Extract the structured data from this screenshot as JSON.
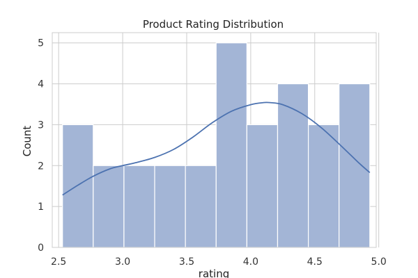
{
  "chart_data": {
    "type": "bar",
    "title": "Product Rating Distribution",
    "xlabel": "rating",
    "ylabel": "Count",
    "xlim": [
      2.45,
      4.98
    ],
    "ylim": [
      0,
      5.25
    ],
    "x_ticks": [
      2.5,
      3.0,
      3.5,
      4.0,
      4.5,
      5.0
    ],
    "x_tick_labels": [
      "2.5",
      "3.0",
      "3.5",
      "4.0",
      "4.5",
      "5.0"
    ],
    "y_ticks": [
      0,
      1,
      2,
      3,
      4,
      5
    ],
    "y_tick_labels": [
      "0",
      "1",
      "2",
      "3",
      "4",
      "5"
    ],
    "grid": true,
    "bins": [
      {
        "x0": 2.53,
        "x1": 2.77,
        "count": 3
      },
      {
        "x0": 2.77,
        "x1": 3.01,
        "count": 2
      },
      {
        "x0": 3.01,
        "x1": 3.25,
        "count": 2
      },
      {
        "x0": 3.25,
        "x1": 3.49,
        "count": 2
      },
      {
        "x0": 3.49,
        "x1": 3.73,
        "count": 2
      },
      {
        "x0": 3.73,
        "x1": 3.97,
        "count": 5
      },
      {
        "x0": 3.97,
        "x1": 4.21,
        "count": 3
      },
      {
        "x0": 4.21,
        "x1": 4.45,
        "count": 4
      },
      {
        "x0": 4.45,
        "x1": 4.69,
        "count": 3
      },
      {
        "x0": 4.69,
        "x1": 4.93,
        "count": 4
      }
    ],
    "kde_curve": {
      "x": [
        2.53,
        2.65,
        2.77,
        2.9,
        3.0,
        3.1,
        3.25,
        3.4,
        3.55,
        3.7,
        3.85,
        4.0,
        4.1,
        4.15,
        4.25,
        4.4,
        4.55,
        4.7,
        4.85,
        4.93
      ],
      "y": [
        1.28,
        1.52,
        1.74,
        1.92,
        2.0,
        2.07,
        2.2,
        2.4,
        2.7,
        3.05,
        3.33,
        3.49,
        3.54,
        3.54,
        3.49,
        3.27,
        2.93,
        2.5,
        2.05,
        1.83
      ]
    },
    "colors": {
      "bar_fill": "#a3b5d6",
      "bar_edge": "#ffffff",
      "kde_line": "#4c72b0",
      "grid": "#cccccc",
      "background": "#ffffff"
    }
  }
}
